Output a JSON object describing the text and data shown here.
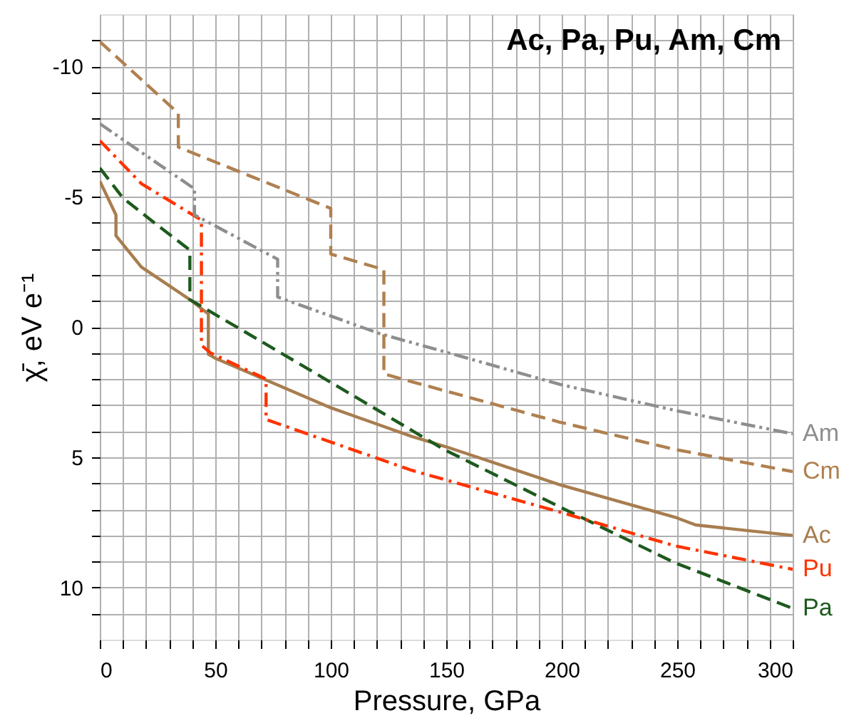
{
  "chart_data": {
    "type": "line",
    "title": "Ac, Pa, Pu, Am, Cm",
    "xlabel": "Pressure, GPa",
    "ylabel": "χ̄, eV e⁻¹",
    "xlim": [
      0,
      300
    ],
    "ylim": [
      12,
      -12
    ],
    "xticks": [
      0,
      {
        "value": 10,
        "label": null
      },
      {
        "value": 20,
        "label": null
      },
      {
        "value": 30,
        "label": null
      },
      {
        "value": 40,
        "label": null
      },
      50,
      {
        "value": 60,
        "label": null
      },
      {
        "value": 70,
        "label": null
      },
      {
        "value": 80,
        "label": null
      },
      {
        "value": 90,
        "label": null
      },
      100,
      {
        "value": 110,
        "label": null
      },
      {
        "value": 120,
        "label": null
      },
      {
        "value": 130,
        "label": null
      },
      {
        "value": 140,
        "label": null
      },
      150,
      {
        "value": 160,
        "label": null
      },
      {
        "value": 170,
        "label": null
      },
      {
        "value": 180,
        "label": null
      },
      {
        "value": 190,
        "label": null
      },
      200,
      {
        "value": 210,
        "label": null
      },
      {
        "value": 220,
        "label": null
      },
      {
        "value": 230,
        "label": null
      },
      {
        "value": 240,
        "label": null
      },
      250,
      {
        "value": 260,
        "label": null
      },
      {
        "value": 270,
        "label": null
      },
      {
        "value": 280,
        "label": null
      },
      {
        "value": 290,
        "label": null
      },
      300
    ],
    "yticks": [
      {
        "value": -11,
        "label": null
      },
      -10,
      {
        "value": -9,
        "label": null
      },
      {
        "value": -8,
        "label": null
      },
      {
        "value": -7,
        "label": null
      },
      {
        "value": -6,
        "label": null
      },
      -5,
      {
        "value": -4,
        "label": null
      },
      {
        "value": -3,
        "label": null
      },
      {
        "value": -2,
        "label": null
      },
      {
        "value": -1,
        "label": null
      },
      0,
      {
        "value": 1,
        "label": null
      },
      {
        "value": 2,
        "label": null
      },
      {
        "value": 3,
        "label": null
      },
      {
        "value": 4,
        "label": null
      },
      5,
      {
        "value": 6,
        "label": null
      },
      {
        "value": 7,
        "label": null
      },
      {
        "value": 8,
        "label": null
      },
      {
        "value": 9,
        "label": null
      },
      10,
      {
        "value": 11,
        "label": null
      }
    ],
    "grid": true,
    "legend": false,
    "series": [
      {
        "name": "Ac",
        "color": "#a87d4f",
        "line_style": "solid",
        "x": [
          0,
          7,
          7,
          18,
          39,
          47,
          47,
          50,
          100,
          135,
          150,
          199,
          249,
          258,
          300
        ],
        "values": [
          -5.6,
          -4.3,
          -3.5,
          -2.3,
          -1.05,
          -0.5,
          1.05,
          1.2,
          3.1,
          4.2,
          4.6,
          6.05,
          7.3,
          7.6,
          8.0
        ]
      },
      {
        "name": "Pa",
        "color": "#1e5a1e",
        "line_style": "dashed",
        "x": [
          0,
          10,
          25,
          39,
          39,
          90,
          149,
          199,
          249,
          300
        ],
        "values": [
          -6.1,
          -4.95,
          -3.9,
          -2.95,
          -1.05,
          1.6,
          4.7,
          6.9,
          9.05,
          10.8
        ]
      },
      {
        "name": "Pu",
        "color": "#ff3300",
        "line_style": "dashdot",
        "x": [
          0,
          18,
          44,
          44,
          48,
          72,
          72,
          135,
          199,
          249,
          300
        ],
        "values": [
          -7.15,
          -5.5,
          -4.1,
          0.7,
          1.0,
          2.0,
          3.55,
          5.5,
          7.1,
          8.4,
          9.3
        ]
      },
      {
        "name": "Am",
        "color": "#8e8e8e",
        "line_style": "dashdotdot",
        "x": [
          0,
          41,
          41,
          77,
          77,
          121,
          162,
          199,
          249,
          300
        ],
        "values": [
          -7.8,
          -5.3,
          -4.3,
          -2.6,
          -1.15,
          0.25,
          1.27,
          2.2,
          3.2,
          4.1
        ]
      },
      {
        "name": "Cm",
        "color": "#b08050",
        "line_style": "dashed",
        "x": [
          0,
          34,
          34,
          100,
          100,
          123,
          123,
          135,
          199,
          249,
          300
        ],
        "values": [
          -10.95,
          -8.2,
          -6.9,
          -4.55,
          -2.8,
          -2.2,
          1.8,
          2.1,
          3.65,
          4.7,
          5.55
        ]
      }
    ]
  }
}
